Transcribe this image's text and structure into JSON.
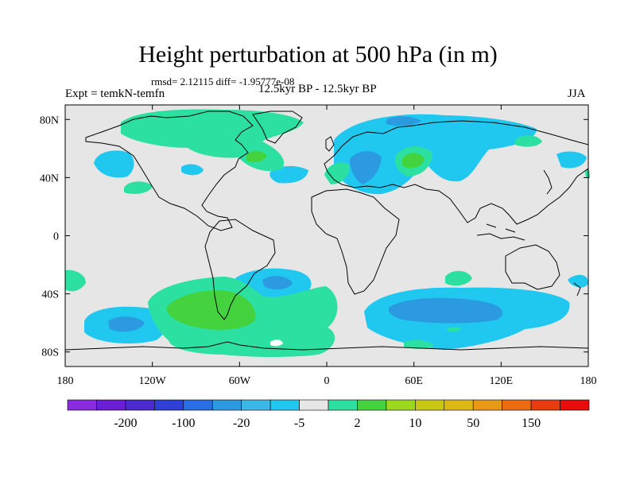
{
  "title": "Height perturbation at 500 hPa (in m)",
  "stats": "rmsd= 2.12115 diff= -1.95777e-08",
  "experiment": "Expt = temkN-temfn",
  "period": "12.5kyr BP - 12.5kyr BP",
  "season": "JJA",
  "map": {
    "projection": "cylindrical equidistant",
    "lon_range": [
      -180,
      180
    ],
    "lat_range": [
      -90,
      90
    ],
    "background_color": "#e6e6e6",
    "coastline_color": "#000000",
    "lat_ticks": [
      {
        "value": 80,
        "label": "80N"
      },
      {
        "value": 40,
        "label": "40N"
      },
      {
        "value": 0,
        "label": "0"
      },
      {
        "value": -40,
        "label": "40S"
      },
      {
        "value": -80,
        "label": "80S"
      }
    ],
    "lon_ticks": [
      {
        "value": -180,
        "label": "180"
      },
      {
        "value": -120,
        "label": "120W"
      },
      {
        "value": -60,
        "label": "60W"
      },
      {
        "value": 0,
        "label": "0"
      },
      {
        "value": 60,
        "label": "60E"
      },
      {
        "value": 120,
        "label": "120E"
      },
      {
        "value": 180,
        "label": "180"
      }
    ]
  },
  "colorbar": {
    "colors": [
      "#8a2be2",
      "#6a1fd6",
      "#4b2ad0",
      "#2f3fd8",
      "#2a6ee6",
      "#2b9ae0",
      "#3bb8e6",
      "#20c8f0",
      "#e6e6e6",
      "#2be0a0",
      "#44d23e",
      "#9cd81c",
      "#c8c814",
      "#dcb814",
      "#e89a14",
      "#ec6a10",
      "#e83c10",
      "#e80c0c"
    ],
    "labels": [
      {
        "after_index": 1,
        "text": "-200"
      },
      {
        "after_index": 3,
        "text": "-100"
      },
      {
        "after_index": 5,
        "text": "-20"
      },
      {
        "after_index": 7,
        "text": "-5"
      },
      {
        "after_index": 9,
        "text": "2"
      },
      {
        "after_index": 11,
        "text": "10"
      },
      {
        "after_index": 13,
        "text": "50"
      },
      {
        "after_index": 15,
        "text": "150"
      }
    ]
  }
}
